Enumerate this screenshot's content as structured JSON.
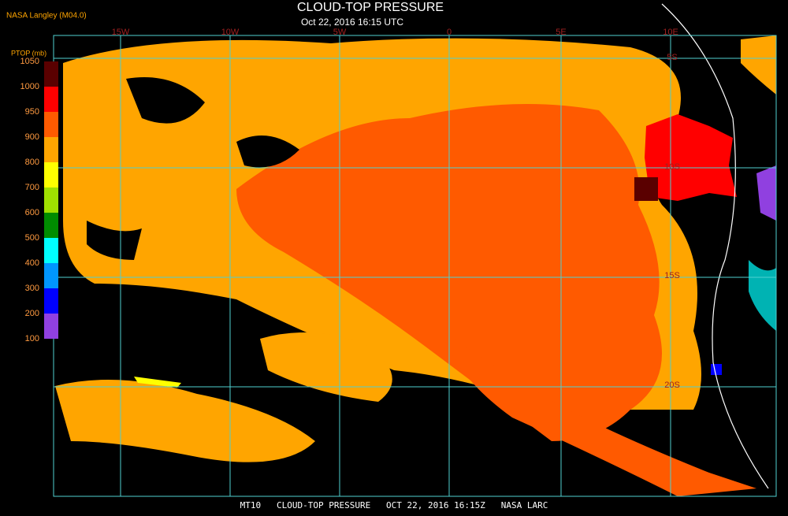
{
  "header": {
    "source": "NASA Langley (M04.0)",
    "title": "CLOUD-TOP PRESSURE",
    "subtitle": "Oct 22, 2016 16:15 UTC"
  },
  "colorbar": {
    "label": "PTOP (mb)",
    "ticks": [
      1050,
      1000,
      950,
      900,
      800,
      700,
      600,
      500,
      400,
      300,
      200,
      100
    ],
    "colors": [
      "#5a0000",
      "#ff0000",
      "#ff5a00",
      "#ffa500",
      "#ffff00",
      "#a0e000",
      "#008c00",
      "#00ffff",
      "#0096ff",
      "#0000ff",
      "#9040e0"
    ]
  },
  "grid": {
    "longitudes": [
      "15W",
      "10W",
      "5W",
      "0",
      "5E",
      "10E"
    ],
    "latitudes": [
      "5S",
      "10S",
      "15S",
      "20S"
    ]
  },
  "footer": "MT10   CLOUD-TOP PRESSURE   OCT 22, 2016 16:15Z   NASA LARC"
}
